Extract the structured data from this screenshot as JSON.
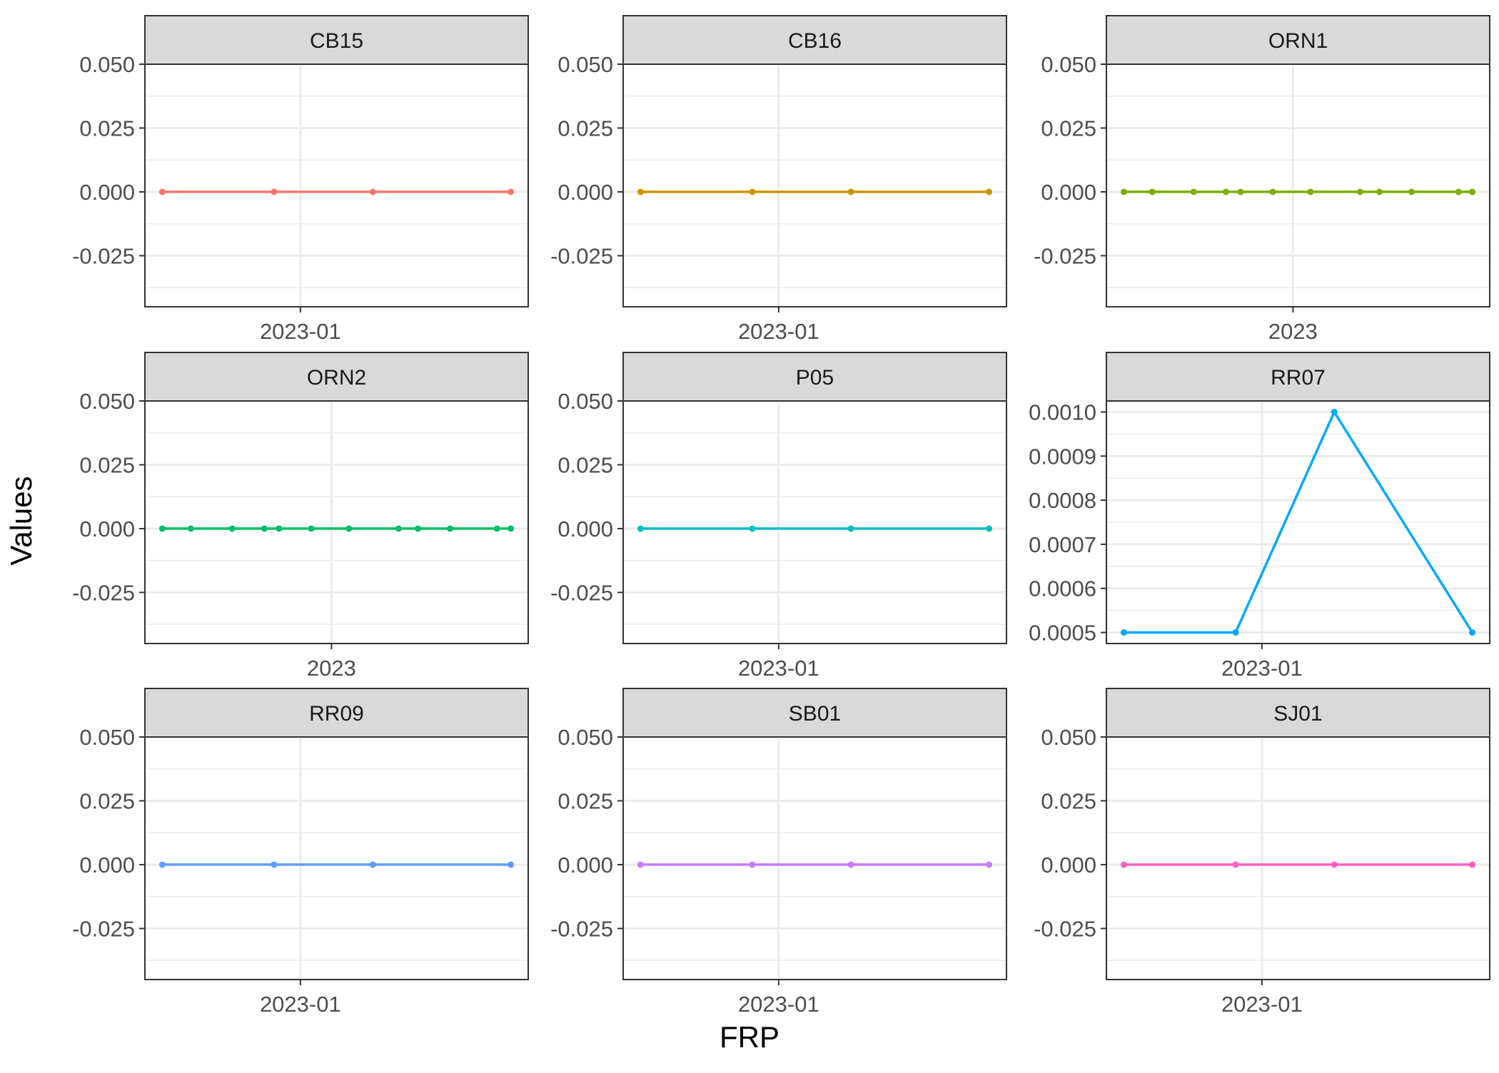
{
  "chart_data": {
    "type": "line",
    "xlabel": "FRP",
    "ylabel": "Values",
    "facets": [
      {
        "name": "CB15",
        "color": "#F8766D",
        "x_tick_label": "2023-01",
        "y_ticks": [
          "0.050",
          "0.025",
          "0.000",
          "-0.025"
        ],
        "y_tick_values": [
          0.05,
          0.025,
          0.0,
          -0.025
        ],
        "ylim": [
          -0.045,
          0.05
        ],
        "x": [
          "2022-12-11",
          "2022-12-28",
          "2023-01-12",
          "2023-02-02"
        ],
        "values": [
          0,
          0,
          0,
          0
        ]
      },
      {
        "name": "CB16",
        "color": "#CD9600",
        "x_tick_label": "2023-01",
        "y_ticks": [
          "0.050",
          "0.025",
          "0.000",
          "-0.025"
        ],
        "y_tick_values": [
          0.05,
          0.025,
          0.0,
          -0.025
        ],
        "ylim": [
          -0.045,
          0.05
        ],
        "x": [
          "2022-12-11",
          "2022-12-28",
          "2023-01-12",
          "2023-02-02"
        ],
        "values": [
          0,
          0,
          0,
          0
        ]
      },
      {
        "name": "ORN1",
        "color": "#7CAE00",
        "x_tick_label": "2023",
        "y_ticks": [
          "0.050",
          "0.025",
          "0.000",
          "-0.025"
        ],
        "y_tick_values": [
          0.05,
          0.025,
          0.0,
          -0.025
        ],
        "ylim": [
          -0.045,
          0.05
        ],
        "x": [
          "2022-07-01",
          "2022-08-01",
          "2022-09-15",
          "2022-10-20",
          "2022-11-05",
          "2022-12-10",
          "2023-01-20",
          "2023-03-15",
          "2023-04-05",
          "2023-05-10",
          "2023-06-30",
          "2023-07-15"
        ],
        "values": [
          0,
          0,
          0,
          0,
          0,
          0,
          0,
          0,
          0,
          0,
          0,
          0
        ]
      },
      {
        "name": "ORN2",
        "color": "#00BE67",
        "x_tick_label": "2023",
        "y_ticks": [
          "0.050",
          "0.025",
          "0.000",
          "-0.025"
        ],
        "y_tick_values": [
          0.05,
          0.025,
          0.0,
          -0.025
        ],
        "ylim": [
          -0.045,
          0.05
        ],
        "x": [
          "2022-07-01",
          "2022-08-01",
          "2022-09-15",
          "2022-10-20",
          "2022-11-05",
          "2022-12-10",
          "2023-01-20",
          "2023-03-15",
          "2023-04-05",
          "2023-05-10",
          "2023-06-30",
          "2023-07-15"
        ],
        "values": [
          0,
          0,
          0,
          0,
          0,
          0,
          0,
          0,
          0,
          0,
          0,
          0
        ]
      },
      {
        "name": "P05",
        "color": "#00BFC4",
        "x_tick_label": "2023-01",
        "y_ticks": [
          "0.050",
          "0.025",
          "0.000",
          "-0.025"
        ],
        "y_tick_values": [
          0.05,
          0.025,
          0.0,
          -0.025
        ],
        "ylim": [
          -0.045,
          0.05
        ],
        "x": [
          "2022-12-11",
          "2022-12-28",
          "2023-01-12",
          "2023-02-02"
        ],
        "values": [
          0,
          0,
          0,
          0
        ]
      },
      {
        "name": "RR07",
        "color": "#00A9FF",
        "x_tick_label": "2023-01",
        "y_ticks": [
          "0.0010",
          "0.0009",
          "0.0008",
          "0.0007",
          "0.0006",
          "0.0005"
        ],
        "y_tick_values": [
          0.001,
          0.0009,
          0.0008,
          0.0007,
          0.0006,
          0.0005
        ],
        "ylim": [
          0.000475,
          0.001025
        ],
        "x": [
          "2022-12-11",
          "2022-12-28",
          "2023-01-12",
          "2023-02-02"
        ],
        "values": [
          0.0005,
          0.0005,
          0.001,
          0.0005
        ]
      },
      {
        "name": "RR09",
        "color": "#619CFF",
        "x_tick_label": "2023-01",
        "y_ticks": [
          "0.050",
          "0.025",
          "0.000",
          "-0.025"
        ],
        "y_tick_values": [
          0.05,
          0.025,
          0.0,
          -0.025
        ],
        "ylim": [
          -0.045,
          0.05
        ],
        "x": [
          "2022-12-11",
          "2022-12-28",
          "2023-01-12",
          "2023-02-02"
        ],
        "values": [
          0,
          0,
          0,
          0
        ]
      },
      {
        "name": "SB01",
        "color": "#C77CFF",
        "x_tick_label": "2023-01",
        "y_ticks": [
          "0.050",
          "0.025",
          "0.000",
          "-0.025"
        ],
        "y_tick_values": [
          0.05,
          0.025,
          0.0,
          -0.025
        ],
        "ylim": [
          -0.045,
          0.05
        ],
        "x": [
          "2022-12-11",
          "2022-12-28",
          "2023-01-12",
          "2023-02-02"
        ],
        "values": [
          0,
          0,
          0,
          0
        ]
      },
      {
        "name": "SJ01",
        "color": "#FF61C3",
        "x_tick_label": "2023-01",
        "y_ticks": [
          "0.050",
          "0.025",
          "0.000",
          "-0.025"
        ],
        "y_tick_values": [
          0.05,
          0.025,
          0.0,
          -0.025
        ],
        "ylim": [
          -0.045,
          0.05
        ],
        "x": [
          "2022-12-11",
          "2022-12-28",
          "2023-01-12",
          "2023-02-02"
        ],
        "values": [
          0,
          0,
          0,
          0
        ]
      }
    ]
  }
}
